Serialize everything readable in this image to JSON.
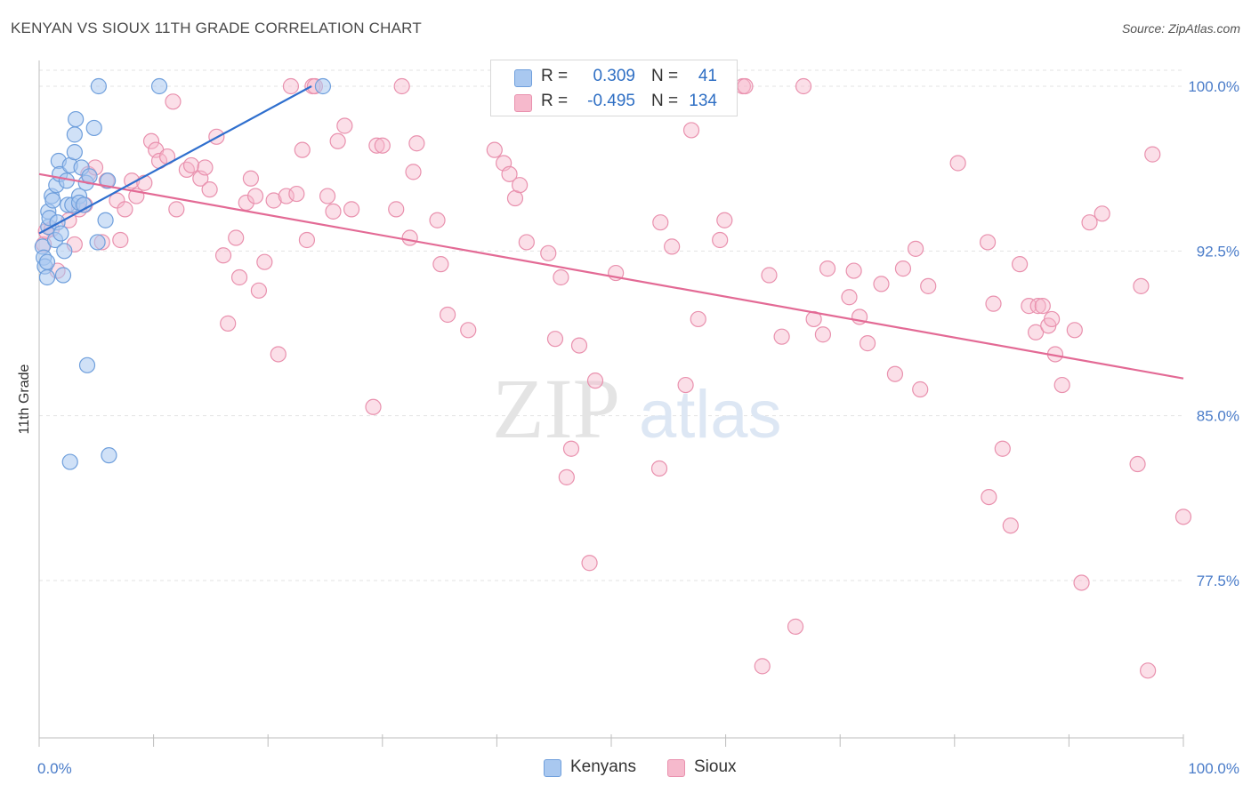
{
  "title": "KENYAN VS SIOUX 11TH GRADE CORRELATION CHART",
  "source": "Source: ZipAtlas.com",
  "watermark": {
    "zip": "ZIP",
    "atlas": "atlas"
  },
  "legend": {
    "kenyans": {
      "r_label": "R =",
      "r_value": "0.309",
      "n_label": "N =",
      "n_value": "41"
    },
    "sioux": {
      "r_label": "R =",
      "r_value": "-0.495",
      "n_label": "N =",
      "n_value": "134"
    }
  },
  "bottom_legend": {
    "kenyans": "Kenyans",
    "sioux": "Sioux"
  },
  "colors": {
    "kenyans_fill": "#a9c8f0",
    "kenyans_stroke": "#6f9fdc",
    "kenyans_line": "#2f6fce",
    "sioux_fill": "#f6b9cc",
    "sioux_stroke": "#e991ae",
    "sioux_line": "#e36a95",
    "tick_text": "#4a7cc9",
    "grid": "#e3e3e3"
  },
  "chart_data": {
    "type": "scatter",
    "title": "KENYAN VS SIOUX 11TH GRADE CORRELATION CHART",
    "xlabel": "",
    "ylabel": "11th Grade",
    "xlim": [
      0,
      100
    ],
    "ylim": [
      70.8,
      101.0
    ],
    "x_tick_labels": [
      "0.0%",
      "100.0%"
    ],
    "y_ticks": [
      100.0,
      92.5,
      85.0,
      77.5
    ],
    "y_tick_labels": [
      "100.0%",
      "92.5%",
      "85.0%",
      "77.5%"
    ],
    "grid": true,
    "series": [
      {
        "name": "Kenyans",
        "trend": {
          "x": [
            0.0,
            23.8
          ],
          "y": [
            93.3,
            100.0
          ]
        },
        "points": [
          [
            0.3,
            92.7
          ],
          [
            0.4,
            92.2
          ],
          [
            0.5,
            91.8
          ],
          [
            0.7,
            92.0
          ],
          [
            0.7,
            91.3
          ],
          [
            0.8,
            94.3
          ],
          [
            0.8,
            93.6
          ],
          [
            0.9,
            94.0
          ],
          [
            1.1,
            95.0
          ],
          [
            1.2,
            94.8
          ],
          [
            1.4,
            93.0
          ],
          [
            1.5,
            95.5
          ],
          [
            1.6,
            93.8
          ],
          [
            1.7,
            96.6
          ],
          [
            1.8,
            96.0
          ],
          [
            1.9,
            93.3
          ],
          [
            2.1,
            91.4
          ],
          [
            2.2,
            92.5
          ],
          [
            2.4,
            95.7
          ],
          [
            2.5,
            94.6
          ],
          [
            2.7,
            96.4
          ],
          [
            2.9,
            94.6
          ],
          [
            3.1,
            97.8
          ],
          [
            3.1,
            97.0
          ],
          [
            3.2,
            98.5
          ],
          [
            3.5,
            95.0
          ],
          [
            3.5,
            94.7
          ],
          [
            3.7,
            96.3
          ],
          [
            3.9,
            94.6
          ],
          [
            4.1,
            95.6
          ],
          [
            4.2,
            87.3
          ],
          [
            4.4,
            95.9
          ],
          [
            4.8,
            98.1
          ],
          [
            5.1,
            92.9
          ],
          [
            5.8,
            93.9
          ],
          [
            6.0,
            95.7
          ],
          [
            6.1,
            83.2
          ],
          [
            2.7,
            82.9
          ],
          [
            5.2,
            100.0
          ],
          [
            10.5,
            100.0
          ],
          [
            24.8,
            100.0
          ]
        ]
      },
      {
        "name": "Sioux",
        "trend": {
          "x": [
            0.0,
            100.0
          ],
          "y": [
            96.0,
            86.7
          ]
        },
        "points": [
          [
            0.4,
            92.8
          ],
          [
            0.6,
            93.4
          ],
          [
            1.1,
            93.5
          ],
          [
            1.6,
            91.6
          ],
          [
            2.6,
            93.9
          ],
          [
            3.1,
            92.8
          ],
          [
            3.5,
            94.4
          ],
          [
            4.0,
            94.6
          ],
          [
            4.3,
            96.0
          ],
          [
            4.9,
            96.3
          ],
          [
            5.5,
            92.9
          ],
          [
            5.9,
            95.7
          ],
          [
            6.8,
            94.8
          ],
          [
            7.1,
            93.0
          ],
          [
            7.5,
            94.4
          ],
          [
            8.1,
            95.7
          ],
          [
            8.5,
            95.0
          ],
          [
            9.2,
            95.6
          ],
          [
            9.8,
            97.5
          ],
          [
            10.2,
            97.1
          ],
          [
            10.5,
            96.6
          ],
          [
            11.2,
            96.8
          ],
          [
            11.7,
            99.3
          ],
          [
            12.0,
            94.4
          ],
          [
            12.9,
            96.2
          ],
          [
            13.3,
            96.4
          ],
          [
            14.1,
            95.8
          ],
          [
            14.9,
            95.3
          ],
          [
            14.5,
            96.3
          ],
          [
            15.5,
            97.7
          ],
          [
            16.1,
            92.3
          ],
          [
            16.5,
            89.2
          ],
          [
            17.2,
            93.1
          ],
          [
            17.5,
            91.3
          ],
          [
            18.1,
            94.7
          ],
          [
            18.5,
            95.8
          ],
          [
            18.9,
            95.0
          ],
          [
            19.2,
            90.7
          ],
          [
            19.7,
            92.0
          ],
          [
            20.5,
            94.8
          ],
          [
            20.9,
            87.8
          ],
          [
            21.6,
            95.0
          ],
          [
            22.0,
            100.0
          ],
          [
            22.5,
            95.1
          ],
          [
            23.0,
            97.1
          ],
          [
            23.4,
            93.0
          ],
          [
            23.9,
            100.0
          ],
          [
            24.1,
            100.0
          ],
          [
            25.2,
            95.0
          ],
          [
            25.7,
            94.3
          ],
          [
            26.1,
            97.5
          ],
          [
            26.7,
            98.2
          ],
          [
            27.3,
            94.4
          ],
          [
            29.2,
            85.4
          ],
          [
            29.5,
            97.3
          ],
          [
            30.0,
            97.3
          ],
          [
            31.2,
            94.4
          ],
          [
            31.7,
            100.0
          ],
          [
            32.4,
            93.1
          ],
          [
            32.7,
            96.1
          ],
          [
            33.0,
            97.4
          ],
          [
            34.8,
            93.9
          ],
          [
            35.1,
            91.9
          ],
          [
            35.7,
            89.6
          ],
          [
            37.5,
            88.9
          ],
          [
            39.8,
            97.1
          ],
          [
            40.6,
            96.5
          ],
          [
            41.1,
            96.0
          ],
          [
            41.6,
            94.9
          ],
          [
            42.0,
            95.5
          ],
          [
            42.6,
            92.9
          ],
          [
            43.3,
            100.0
          ],
          [
            43.7,
            100.0
          ],
          [
            44.5,
            92.4
          ],
          [
            45.1,
            88.5
          ],
          [
            45.6,
            91.3
          ],
          [
            46.1,
            82.2
          ],
          [
            46.5,
            83.5
          ],
          [
            47.2,
            88.2
          ],
          [
            48.1,
            78.3
          ],
          [
            48.6,
            86.6
          ],
          [
            50.4,
            91.5
          ],
          [
            54.2,
            82.6
          ],
          [
            54.3,
            93.8
          ],
          [
            55.3,
            92.7
          ],
          [
            56.5,
            86.4
          ],
          [
            57.0,
            98.0
          ],
          [
            57.6,
            89.4
          ],
          [
            59.5,
            93.0
          ],
          [
            59.9,
            93.9
          ],
          [
            61.5,
            100.0
          ],
          [
            61.7,
            100.0
          ],
          [
            63.2,
            73.6
          ],
          [
            63.8,
            91.4
          ],
          [
            64.9,
            88.6
          ],
          [
            66.1,
            75.4
          ],
          [
            66.8,
            100.0
          ],
          [
            67.7,
            89.4
          ],
          [
            68.5,
            88.7
          ],
          [
            68.9,
            91.7
          ],
          [
            70.8,
            90.4
          ],
          [
            71.2,
            91.6
          ],
          [
            71.7,
            89.5
          ],
          [
            72.4,
            88.3
          ],
          [
            73.6,
            91.0
          ],
          [
            74.8,
            86.9
          ],
          [
            75.5,
            91.7
          ],
          [
            76.6,
            92.6
          ],
          [
            77.0,
            86.2
          ],
          [
            77.7,
            90.9
          ],
          [
            80.3,
            96.5
          ],
          [
            82.9,
            92.9
          ],
          [
            83.0,
            81.3
          ],
          [
            83.4,
            90.1
          ],
          [
            84.2,
            83.5
          ],
          [
            84.9,
            80.0
          ],
          [
            85.7,
            91.9
          ],
          [
            86.5,
            90.0
          ],
          [
            87.1,
            88.8
          ],
          [
            87.3,
            90.0
          ],
          [
            87.7,
            90.0
          ],
          [
            88.2,
            89.1
          ],
          [
            88.5,
            89.4
          ],
          [
            88.8,
            87.8
          ],
          [
            89.4,
            86.4
          ],
          [
            90.5,
            88.9
          ],
          [
            91.1,
            77.4
          ],
          [
            91.8,
            93.8
          ],
          [
            92.9,
            94.2
          ],
          [
            96.0,
            82.8
          ],
          [
            96.3,
            90.9
          ],
          [
            96.9,
            73.4
          ],
          [
            97.3,
            96.9
          ],
          [
            100.0,
            80.4
          ]
        ]
      }
    ]
  }
}
